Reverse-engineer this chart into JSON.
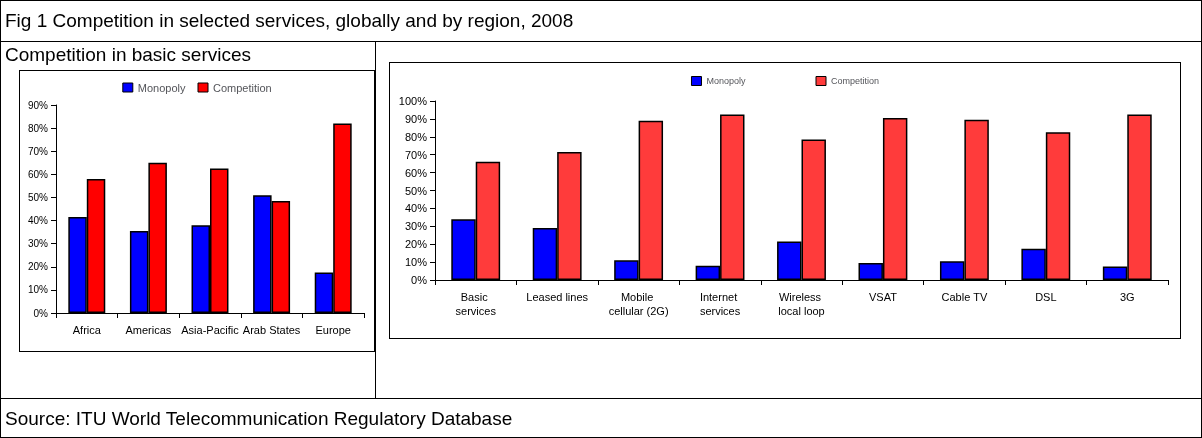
{
  "chart_data": [
    {
      "type": "bar",
      "title": "Fig 1 Competition in selected services, globally and by region, 2008",
      "subtitle": "Competition in basic services",
      "categories": [
        "Africa",
        "Americas",
        "Asia-Pacific",
        "Arab States",
        "Europe"
      ],
      "series": [
        {
          "name": "Monopoly",
          "color": "#0000ff",
          "values": [
            41.5,
            35.5,
            38,
            51,
            17.5
          ]
        },
        {
          "name": "Competition",
          "color": "#ff0000",
          "values": [
            58,
            65,
            62.5,
            48.5,
            82
          ]
        }
      ],
      "ylim": [
        0,
        90
      ],
      "yticks": [
        {
          "value": 0,
          "label": "0%"
        },
        {
          "value": 10,
          "label": "10%"
        },
        {
          "value": 20,
          "label": "20%"
        },
        {
          "value": 30,
          "label": "30%"
        },
        {
          "value": 40,
          "label": "40%"
        },
        {
          "value": 50,
          "label": "50%"
        },
        {
          "value": 60,
          "label": "60%"
        },
        {
          "value": 70,
          "label": "70%"
        },
        {
          "value": 80,
          "label": "80%"
        },
        {
          "value": 90,
          "label": "90%"
        }
      ],
      "grid": false,
      "legend": "top"
    },
    {
      "type": "bar",
      "categories": [
        "Basic services",
        "Leased lines",
        "Mobile cellular (2G)",
        "Internet services",
        "Wireless local loop",
        "VSAT",
        "Cable TV",
        "DSL",
        "3G"
      ],
      "series": [
        {
          "name": "Monopoly",
          "color": "#0000ff",
          "values": [
            34,
            29,
            11,
            8,
            21.5,
            9.5,
            10.5,
            17.5,
            7.5
          ]
        },
        {
          "name": "Competition",
          "color": "#ff3b3b",
          "values": [
            66,
            71.5,
            89,
            92.5,
            78.5,
            90.5,
            89.5,
            82.5,
            92.5
          ]
        }
      ],
      "ylim": [
        0,
        100
      ],
      "yticks": [
        {
          "value": 0,
          "label": "0%"
        },
        {
          "value": 10,
          "label": "10%"
        },
        {
          "value": 20,
          "label": "20%"
        },
        {
          "value": 30,
          "label": "30%"
        },
        {
          "value": 40,
          "label": "40%"
        },
        {
          "value": 50,
          "label": "50%"
        },
        {
          "value": 60,
          "label": "60%"
        },
        {
          "value": 70,
          "label": "70%"
        },
        {
          "value": 80,
          "label": "80%"
        },
        {
          "value": 90,
          "label": "90%"
        },
        {
          "value": 100,
          "label": "100%"
        }
      ],
      "grid": false,
      "legend": "top",
      "annotations": [
        "Source: ITU World Telecommunication Regulatory Database"
      ]
    }
  ]
}
